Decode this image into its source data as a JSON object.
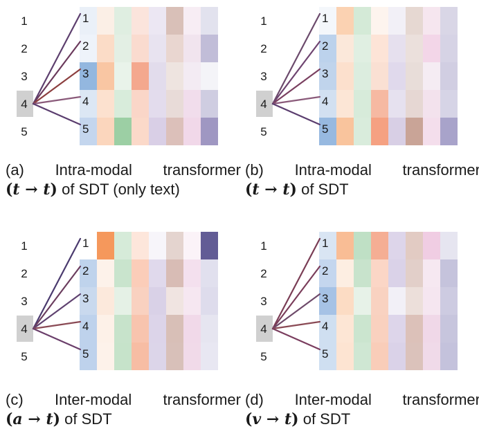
{
  "colors": {
    "text": "#1a1a1a",
    "line": "#6b3a5c",
    "target_box": "#d0d0d0",
    "cell_border": "#ffffff"
  },
  "panels": [
    {
      "id": "a",
      "caption_line1": "(a) Intra-modal transformer",
      "caption_expr": {
        "open": "(",
        "from": "t",
        "arrow": "→",
        "to": "t",
        "close": ")"
      },
      "caption_tail": " of SDT (only text)",
      "left_labels": [
        "1",
        "2",
        "3",
        "4",
        "5"
      ],
      "target_index": 3,
      "row_labels": [
        "1",
        "2",
        "3",
        "4",
        "5"
      ],
      "connection_colors": [
        "#5d3f6e",
        "#6b3a5c",
        "#8c3f3f",
        "#8a5a7a",
        "#5a3d6e"
      ],
      "heatmap": [
        [
          "#eaf0f8",
          "#fbefe6",
          "#dfeee1",
          "#fbe4dc",
          "#ece7f3",
          "#d9c0b8",
          "#f7edf4",
          "#e2e2ee"
        ],
        [
          "#eef3fa",
          "#fbdcc7",
          "#e3efe4",
          "#fadbcf",
          "#e8e3f0",
          "#e9d6d0",
          "#f1e4ee",
          "#c1bdd8"
        ],
        [
          "#93b7df",
          "#f9c6a3",
          "#e9f3ea",
          "#f4a88e",
          "#e2dcec",
          "#eee4e0",
          "#f3ebf3",
          "#f4f4f8"
        ],
        [
          "#dce7f4",
          "#fce1cf",
          "#d8ecdb",
          "#fad6c8",
          "#e3dced",
          "#e8dbd8",
          "#f1ddec",
          "#cfcde1"
        ],
        [
          "#c4d6ee",
          "#fbd6bd",
          "#9ccfa4",
          "#fbd9c9",
          "#d9cfe6",
          "#dcc0ba",
          "#f1d8e9",
          "#9f97c2"
        ]
      ]
    },
    {
      "id": "b",
      "caption_line1": "(b) Intra-modal transformer",
      "caption_expr": {
        "open": "(",
        "from": "t",
        "arrow": "→",
        "to": "t",
        "close": ")"
      },
      "caption_tail": " of SDT",
      "left_labels": [
        "1",
        "2",
        "3",
        "4",
        "5"
      ],
      "target_index": 3,
      "row_labels": [
        "1",
        "2",
        "3",
        "4",
        "5"
      ],
      "connection_colors": [
        "#6b4a6c",
        "#6e4470",
        "#7a4060",
        "#8a5a7a",
        "#5a3d6e"
      ],
      "heatmap": [
        [
          "#f4f7fb",
          "#fbd2b2",
          "#d4ead7",
          "#fdf4ee",
          "#f2f0f7",
          "#e6d8d2",
          "#f6e6ef",
          "#d9d6e6"
        ],
        [
          "#bcd2ec",
          "#fbe8da",
          "#e0efe2",
          "#fde4d7",
          "#e6e0ee",
          "#ebe0dc",
          "#f3d6e8",
          "#d6d3e5"
        ],
        [
          "#c0d4ec",
          "#fce0cd",
          "#dceddf",
          "#fae0d3",
          "#e0d9ec",
          "#e8ddd9",
          "#f5ecf3",
          "#d1cee2"
        ],
        [
          "#d2e0f1",
          "#fce6d6",
          "#d7ebda",
          "#f6b9a2",
          "#e6e1ef",
          "#e6d7d3",
          "#f3e2ed",
          "#d6d4e6"
        ],
        [
          "#97b9e0",
          "#f9c49d",
          "#d9ecdc",
          "#f5a182",
          "#d8cfe5",
          "#c9a497",
          "#f4deec",
          "#a8a3ca"
        ]
      ]
    },
    {
      "id": "c",
      "caption_line1": "(c) Inter-modal transformer",
      "caption_expr": {
        "open": "(",
        "from": "a",
        "arrow": "→",
        "to": "t",
        "close": ")"
      },
      "caption_tail": " of SDT",
      "left_labels": [
        "1",
        "2",
        "3",
        "4",
        "5"
      ],
      "target_index": 3,
      "row_labels": [
        "1",
        "2",
        "3",
        "4",
        "5"
      ],
      "connection_colors": [
        "#4a3a6e",
        "#6b3d5e",
        "#5f4270",
        "#8a4a55",
        "#6a3e6a"
      ],
      "heatmap": [
        [
          "#ffffff",
          "#f5985c",
          "#d6ebd9",
          "#fde6db",
          "#f7f5fa",
          "#e4d4cf",
          "#fbf3f8",
          "#625c95"
        ],
        [
          "#bfd3ec",
          "#fdf2ea",
          "#c9e4cd",
          "#fbcdb9",
          "#e0d9ec",
          "#d8bcb5",
          "#f4e0ee",
          "#e1e0ee"
        ],
        [
          "#c9d9ee",
          "#fce9dc",
          "#e5f1e6",
          "#f9d1c0",
          "#d9d1e7",
          "#f0e4e1",
          "#f6e7f1",
          "#dedcec"
        ],
        [
          "#bed2ec",
          "#fdf1e8",
          "#c7e3cb",
          "#f8c4ae",
          "#dcd4e9",
          "#d8bfb7",
          "#f1d9e9",
          "#e6e5f0"
        ],
        [
          "#bed2ec",
          "#fdf2ea",
          "#c6e3ca",
          "#f7bda4",
          "#dcd5e9",
          "#d8c0b9",
          "#f1dae9",
          "#e8e7f2"
        ]
      ]
    },
    {
      "id": "d",
      "caption_line1": "(d) Inter-modal transformer",
      "caption_expr": {
        "open": "(",
        "from": "v",
        "arrow": "→",
        "to": "t",
        "close": ")"
      },
      "caption_tail": " of SDT",
      "left_labels": [
        "1",
        "2",
        "3",
        "4",
        "5"
      ],
      "target_index": 3,
      "row_labels": [
        "1",
        "2",
        "3",
        "4",
        "5"
      ],
      "connection_colors": [
        "#7a3d55",
        "#7a3d5a",
        "#6e4a6a",
        "#8a4a55",
        "#7a3d5e"
      ],
      "heatmap": [
        [
          "#d9e5f3",
          "#f9bd95",
          "#bfe0c5",
          "#f5ae94",
          "#ddd5ea",
          "#e2cbc3",
          "#f0cde3",
          "#e6e5f0"
        ],
        [
          "#c4d6ee",
          "#fdeee2",
          "#c8e3cc",
          "#fbd6c6",
          "#dad2e8",
          "#e2cfc9",
          "#f6e8f1",
          "#c5c3dc"
        ],
        [
          "#a6c2e5",
          "#fcdcc4",
          "#e7f2e8",
          "#f9d2c1",
          "#f2f0f7",
          "#ecdfda",
          "#f5e6f0",
          "#cdcbe1"
        ],
        [
          "#cfdff1",
          "#fde6d5",
          "#cbe5cf",
          "#f9d1bf",
          "#ddd5ea",
          "#dcc1b9",
          "#f0d8e8",
          "#c7c5dd"
        ],
        [
          "#cfdff1",
          "#fde4d2",
          "#cfe7d3",
          "#f9cdb9",
          "#dad2e8",
          "#dbc2bb",
          "#f0dae9",
          "#c4c2dc"
        ]
      ]
    }
  ]
}
